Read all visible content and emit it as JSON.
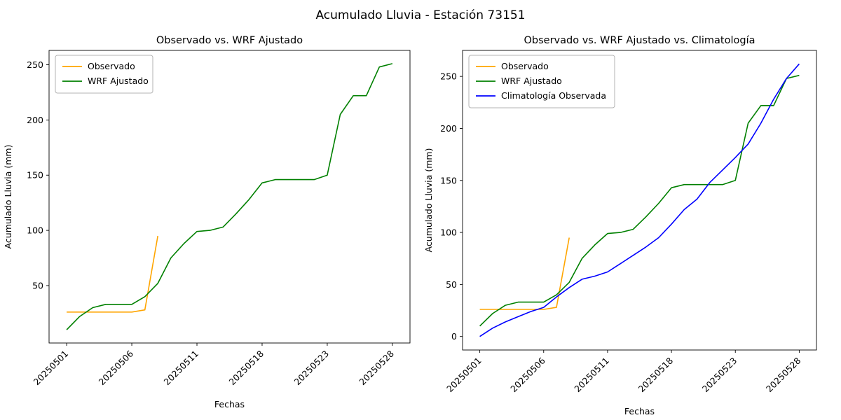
{
  "figure": {
    "title": "Acumulado Lluvia - Estación 73151"
  },
  "colors": {
    "observado": "#FFA500",
    "wrf": "#008000",
    "climatologia": "#0000FF",
    "spine": "#000000",
    "legend_border": "#b3b3b3"
  },
  "chart_data": [
    {
      "type": "line",
      "title": "Observado vs. WRF Ajustado",
      "xlabel": "Fechas",
      "ylabel": "Acumulado Lluvia (mm)",
      "grid": false,
      "legend_position": "upper left",
      "x_tick_indices": [
        0,
        5,
        10,
        15,
        20,
        25
      ],
      "x_tick_labels": [
        "20250501",
        "20250506",
        "20250511",
        "20250518",
        "20250523",
        "20250528"
      ],
      "y_ticks": [
        50,
        100,
        150,
        200,
        250
      ],
      "xlim": [
        -1.35,
        26.35
      ],
      "ylim": [
        -2,
        263
      ],
      "series": [
        {
          "name": "Observado",
          "color": "#FFA500",
          "x": [
            0,
            1,
            2,
            3,
            4,
            5,
            6,
            7
          ],
          "values": [
            26,
            26,
            26,
            26,
            26,
            26,
            28,
            95
          ]
        },
        {
          "name": "WRF Ajustado",
          "color": "#008000",
          "x": [
            0,
            1,
            2,
            3,
            4,
            5,
            6,
            7,
            8,
            9,
            10,
            11,
            12,
            13,
            14,
            15,
            16,
            17,
            18,
            19,
            20,
            21,
            22,
            23,
            24,
            25
          ],
          "values": [
            10,
            22,
            30,
            33,
            33,
            33,
            40,
            52,
            75,
            88,
            99,
            100,
            103,
            115,
            128,
            143,
            146,
            146,
            146,
            146,
            150,
            205,
            222,
            222,
            248,
            251
          ]
        }
      ]
    },
    {
      "type": "line",
      "title": "Observado vs. WRF Ajustado vs. Climatología",
      "xlabel": "Fechas",
      "ylabel": "Acumulado Lluvia (mm)",
      "grid": false,
      "legend_position": "upper left",
      "x_tick_indices": [
        0,
        5,
        10,
        15,
        20,
        25
      ],
      "x_tick_labels": [
        "20250501",
        "20250506",
        "20250511",
        "20250518",
        "20250523",
        "20250528"
      ],
      "y_ticks": [
        0,
        50,
        100,
        150,
        200,
        250
      ],
      "xlim": [
        -1.35,
        26.35
      ],
      "ylim": [
        -13,
        275
      ],
      "series": [
        {
          "name": "Observado",
          "color": "#FFA500",
          "x": [
            0,
            1,
            2,
            3,
            4,
            5,
            6,
            7
          ],
          "values": [
            26,
            26,
            26,
            26,
            26,
            26,
            28,
            95
          ]
        },
        {
          "name": "WRF Ajustado",
          "color": "#008000",
          "x": [
            0,
            1,
            2,
            3,
            4,
            5,
            6,
            7,
            8,
            9,
            10,
            11,
            12,
            13,
            14,
            15,
            16,
            17,
            18,
            19,
            20,
            21,
            22,
            23,
            24,
            25
          ],
          "values": [
            10,
            22,
            30,
            33,
            33,
            33,
            40,
            52,
            75,
            88,
            99,
            100,
            103,
            115,
            128,
            143,
            146,
            146,
            146,
            146,
            150,
            205,
            222,
            222,
            248,
            251
          ]
        },
        {
          "name": "Climatología Observada",
          "color": "#0000FF",
          "x": [
            0,
            1,
            2,
            3,
            4,
            5,
            6,
            7,
            8,
            9,
            10,
            11,
            12,
            13,
            14,
            15,
            16,
            17,
            18,
            19,
            20,
            21,
            22,
            23,
            24,
            25
          ],
          "values": [
            0,
            8,
            14,
            19,
            24,
            28,
            38,
            47,
            55,
            58,
            62,
            70,
            78,
            86,
            95,
            108,
            122,
            132,
            148,
            160,
            172,
            185,
            205,
            228,
            248,
            262
          ]
        }
      ]
    }
  ]
}
